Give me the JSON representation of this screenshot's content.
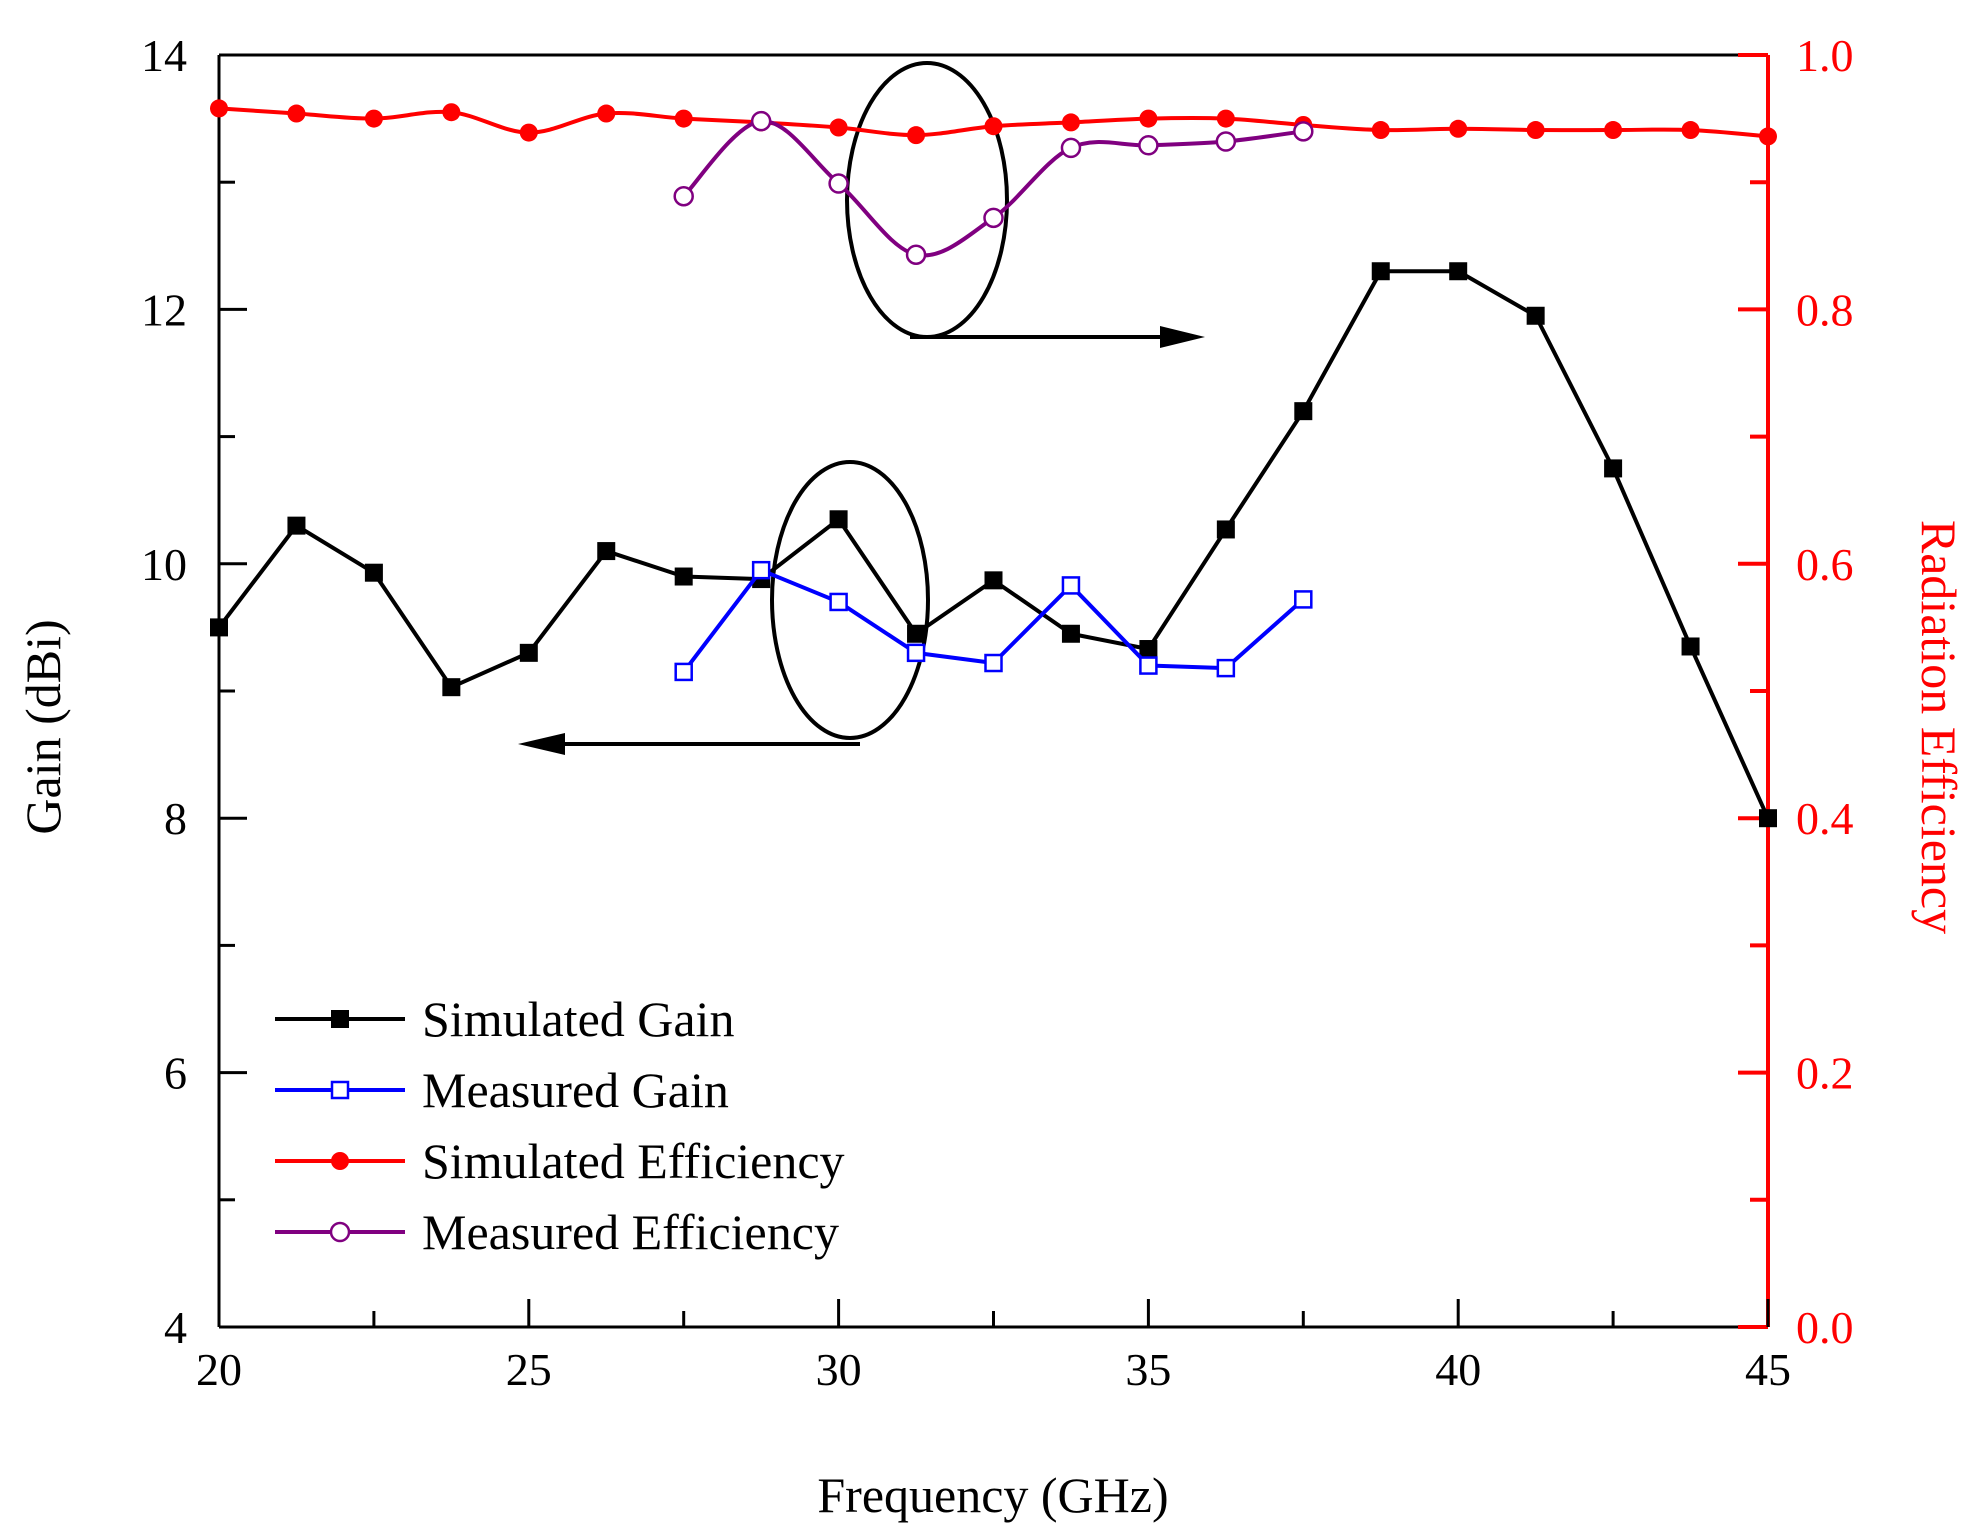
{
  "chart_data": {
    "type": "line",
    "xlabel": "Frequency (GHz)",
    "ylabel_left": "Gain (dBi)",
    "ylabel_right": "Radiation Efficiency",
    "xlim": [
      20,
      45
    ],
    "ylim_left": [
      4,
      14
    ],
    "ylim_right": [
      0.0,
      1.0
    ],
    "x_ticks": [
      "20",
      "25",
      "30",
      "35",
      "40",
      "45"
    ],
    "y_left_ticks": [
      "4",
      "6",
      "8",
      "10",
      "12",
      "14"
    ],
    "y_right_ticks": [
      "0.0",
      "0.2",
      "0.4",
      "0.6",
      "0.8",
      "1.0"
    ],
    "grid": false,
    "legend_position": "bottom-left",
    "series": [
      {
        "name": "Simulated Gain",
        "axis": "left",
        "color": "#000000",
        "marker": "filled-square",
        "x": [
          20,
          21.25,
          22.5,
          23.75,
          25,
          26.25,
          27.5,
          28.75,
          30,
          31.25,
          32.5,
          33.75,
          35,
          36.25,
          37.5,
          38.75,
          40,
          41.25,
          42.5,
          43.75,
          45
        ],
        "values": [
          9.5,
          10.3,
          9.93,
          9.03,
          9.3,
          10.1,
          9.9,
          9.88,
          10.35,
          9.45,
          9.87,
          9.45,
          9.33,
          10.27,
          11.2,
          12.3,
          12.3,
          11.95,
          10.75,
          9.35,
          8.0
        ]
      },
      {
        "name": "Measured Gain",
        "axis": "left",
        "color": "#0000ff",
        "marker": "open-square",
        "x": [
          27.5,
          28.75,
          30,
          31.25,
          32.5,
          33.75,
          35,
          36.25,
          37.5
        ],
        "values": [
          9.15,
          9.95,
          9.7,
          9.3,
          9.22,
          9.83,
          9.2,
          9.18,
          9.72
        ]
      },
      {
        "name": "Simulated Efficiency",
        "axis": "right",
        "color": "#ff0000",
        "marker": "filled-circle",
        "x": [
          20,
          21.25,
          22.5,
          23.75,
          25,
          26.25,
          27.5,
          28.75,
          30,
          31.25,
          32.5,
          33.75,
          35,
          36.25,
          37.5,
          38.75,
          40,
          41.25,
          42.5,
          43.75,
          45
        ],
        "values": [
          0.958,
          0.954,
          0.95,
          0.955,
          0.939,
          0.954,
          0.95,
          0.947,
          0.943,
          0.937,
          0.944,
          0.947,
          0.95,
          0.95,
          0.945,
          0.941,
          0.942,
          0.941,
          0.941,
          0.941,
          0.936
        ]
      },
      {
        "name": "Measured Efficiency",
        "axis": "right",
        "color": "#800080",
        "marker": "open-circle",
        "x": [
          27.5,
          28.75,
          30,
          31.25,
          32.5,
          33.75,
          35,
          36.25,
          37.5
        ],
        "values": [
          0.889,
          0.948,
          0.899,
          0.843,
          0.872,
          0.927,
          0.929,
          0.932,
          0.94
        ]
      }
    ]
  },
  "colors": {
    "left_axis": "#000000",
    "right_axis": "#ff0000"
  }
}
